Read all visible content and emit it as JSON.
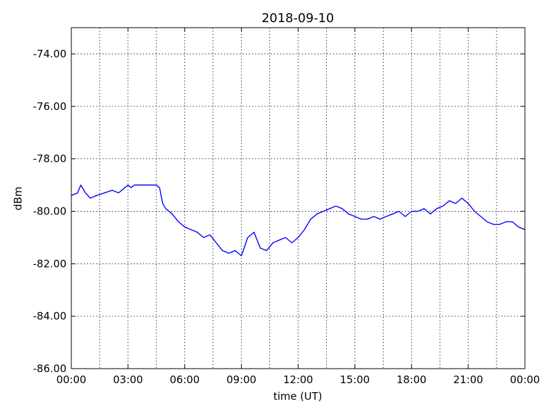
{
  "chart_data": {
    "type": "line",
    "title": "2018-09-10",
    "xlabel": "time (UT)",
    "ylabel": "dBm",
    "xlim": [
      "00:00",
      "24:00"
    ],
    "ylim": [
      -86.0,
      -73.0
    ],
    "x_ticks": [
      "00:00",
      "03:00",
      "06:00",
      "09:00",
      "12:00",
      "15:00",
      "18:00",
      "21:00",
      "00:00"
    ],
    "y_ticks": [
      "-74.00",
      "-76.00",
      "-78.00",
      "-80.00",
      "-82.00",
      "-84.00",
      "-86.00"
    ],
    "grid": true,
    "series": [
      {
        "color": "#0000ff",
        "x": [
          "00:00",
          "00:20",
          "00:30",
          "00:45",
          "01:00",
          "01:20",
          "01:45",
          "02:10",
          "02:30",
          "02:50",
          "03:00",
          "03:10",
          "03:20",
          "03:30",
          "03:50",
          "04:10",
          "04:30",
          "04:40",
          "04:50",
          "05:00",
          "05:20",
          "05:40",
          "06:00",
          "06:20",
          "06:40",
          "07:00",
          "07:20",
          "07:40",
          "08:00",
          "08:20",
          "08:40",
          "09:00",
          "09:20",
          "09:40",
          "10:00",
          "10:20",
          "10:40",
          "11:00",
          "11:20",
          "11:40",
          "12:00",
          "12:20",
          "12:40",
          "13:00",
          "13:20",
          "13:40",
          "14:00",
          "14:20",
          "14:40",
          "15:00",
          "15:20",
          "15:40",
          "16:00",
          "16:20",
          "16:40",
          "17:00",
          "17:20",
          "17:40",
          "18:00",
          "18:20",
          "18:40",
          "19:00",
          "19:20",
          "19:40",
          "20:00",
          "20:20",
          "20:40",
          "21:00",
          "21:20",
          "21:40",
          "22:00",
          "22:20",
          "22:40",
          "23:00",
          "23:20",
          "23:40",
          "24:00"
        ],
        "y": [
          -79.4,
          -79.3,
          -79.0,
          -79.3,
          -79.5,
          -79.4,
          -79.3,
          -79.2,
          -79.3,
          -79.1,
          -79.0,
          -79.1,
          -79.0,
          -79.0,
          -79.0,
          -79.0,
          -79.0,
          -79.1,
          -79.7,
          -79.9,
          -80.1,
          -80.4,
          -80.6,
          -80.7,
          -80.8,
          -81.0,
          -80.9,
          -81.2,
          -81.5,
          -81.6,
          -81.5,
          -81.7,
          -81.0,
          -80.8,
          -81.4,
          -81.5,
          -81.2,
          -81.1,
          -81.0,
          -81.2,
          -81.0,
          -80.7,
          -80.3,
          -80.1,
          -80.0,
          -79.9,
          -79.8,
          -79.9,
          -80.1,
          -80.2,
          -80.3,
          -80.3,
          -80.2,
          -80.3,
          -80.2,
          -80.1,
          -80.0,
          -80.2,
          -80.0,
          -80.0,
          -79.9,
          -80.1,
          -79.9,
          -79.8,
          -79.6,
          -79.7,
          -79.5,
          -79.7,
          -80.0,
          -80.2,
          -80.4,
          -80.5,
          -80.5,
          -80.4,
          -80.4,
          -80.6,
          -80.7
        ]
      }
    ]
  }
}
